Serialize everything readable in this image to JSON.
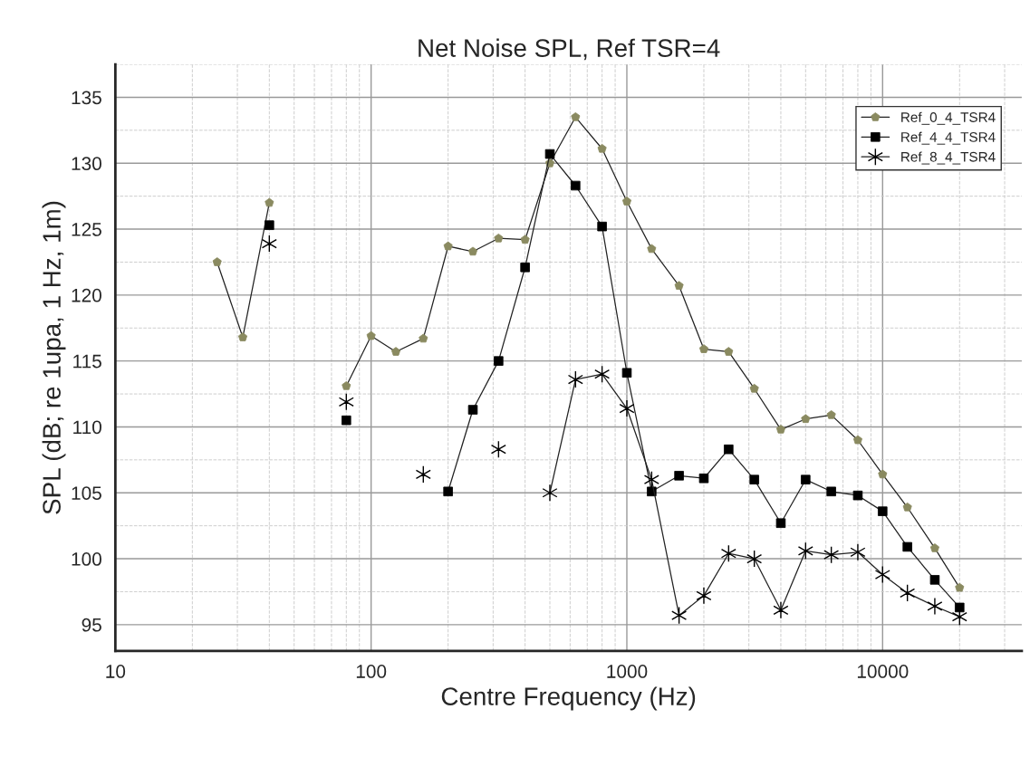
{
  "chart_data": {
    "type": "line",
    "title": "Net Noise SPL, Ref TSR=4",
    "xlabel": "Centre Frequency (Hz)",
    "ylabel": "SPL (dB; re 1upa, 1 Hz, 1m)",
    "x": [
      25,
      31.5,
      40,
      50,
      63,
      80,
      100,
      125,
      160,
      200,
      250,
      315,
      400,
      500,
      630,
      800,
      1000,
      1250,
      1600,
      2000,
      2500,
      3150,
      4000,
      5000,
      6300,
      8000,
      10000,
      12500,
      16000,
      20000
    ],
    "log": "x",
    "xlim": [
      10,
      35000
    ],
    "xticks": [
      10,
      100,
      1000,
      10000
    ],
    "ylim": [
      93,
      137.5
    ],
    "yticks": [
      95,
      100,
      105,
      110,
      115,
      120,
      125,
      130,
      135
    ],
    "grid": true,
    "legend": "top right",
    "series": [
      {
        "name": "Ref_0_4_TSR4",
        "color": "#8a8a60",
        "marker": "circle",
        "values": [
          122.5,
          116.8,
          127.0,
          null,
          null,
          113.1,
          116.9,
          115.7,
          116.7,
          123.7,
          123.3,
          124.3,
          124.2,
          130.0,
          133.5,
          131.1,
          127.1,
          123.5,
          120.7,
          115.9,
          115.7,
          112.9,
          109.8,
          110.6,
          110.9,
          109.0,
          106.4,
          103.9,
          100.8,
          97.8
        ]
      },
      {
        "name": "Ref_4_4_TSR4",
        "color": "#000000",
        "marker": "square",
        "values": [
          null,
          null,
          125.3,
          null,
          null,
          110.5,
          null,
          null,
          null,
          105.1,
          111.3,
          115.0,
          122.1,
          130.7,
          128.3,
          125.2,
          114.1,
          105.1,
          106.3,
          106.1,
          108.3,
          106.0,
          102.7,
          106.0,
          105.1,
          104.8,
          103.6,
          100.9,
          98.4,
          96.3
        ]
      },
      {
        "name": "Ref_8_4_TSR4",
        "color": "#000000",
        "marker": "cross",
        "values": [
          null,
          null,
          123.9,
          null,
          null,
          111.9,
          null,
          null,
          106.4,
          null,
          null,
          108.3,
          null,
          105.0,
          113.6,
          114.0,
          111.4,
          106.0,
          95.7,
          97.2,
          100.4,
          100.0,
          96.1,
          100.6,
          100.3,
          100.5,
          98.8,
          97.4,
          96.4,
          95.6
        ]
      }
    ]
  }
}
